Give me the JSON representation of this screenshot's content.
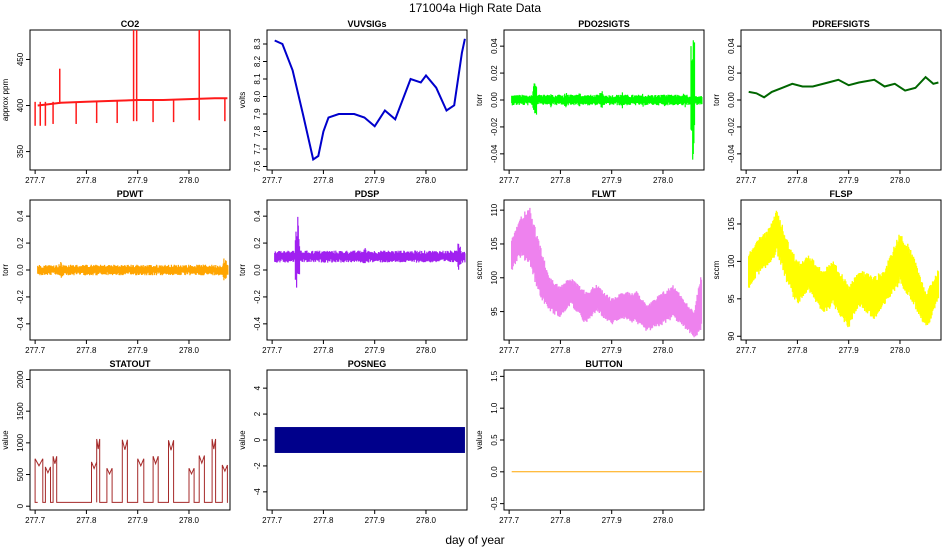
{
  "figure": {
    "title": "171004a   High Rate Data",
    "xlabel": "day of year"
  },
  "chart_data": [
    {
      "id": "co2",
      "type": "line",
      "title": "CO2",
      "ylabel": "approx ppm",
      "color": "#ff1a1a",
      "xlim": [
        277.69,
        278.08
      ],
      "ylim": [
        330,
        482
      ],
      "yticks": [
        {
          "v": 350,
          "label": "350"
        },
        {
          "v": 400,
          "label": "400"
        },
        {
          "v": 450,
          "label": "450"
        }
      ],
      "x": [
        277.705,
        277.72,
        277.75,
        277.8,
        277.85,
        277.9,
        277.95,
        278.0,
        278.05,
        278.075
      ],
      "y": [
        400,
        401,
        403,
        404,
        405,
        406,
        406,
        407,
        408,
        408
      ],
      "spikes": [
        {
          "x": 277.7,
          "lo": 378,
          "hi": 404
        },
        {
          "x": 277.71,
          "lo": 378,
          "hi": 404
        },
        {
          "x": 277.72,
          "lo": 378,
          "hi": 404
        },
        {
          "x": 277.735,
          "lo": 380,
          "hi": 404
        },
        {
          "x": 277.748,
          "lo": 402,
          "hi": 440
        },
        {
          "x": 277.78,
          "lo": 380,
          "hi": 404
        },
        {
          "x": 277.82,
          "lo": 381,
          "hi": 405
        },
        {
          "x": 277.86,
          "lo": 381,
          "hi": 405
        },
        {
          "x": 277.892,
          "lo": 383,
          "hi": 482
        },
        {
          "x": 277.898,
          "lo": 383,
          "hi": 482
        },
        {
          "x": 277.93,
          "lo": 382,
          "hi": 406
        },
        {
          "x": 277.97,
          "lo": 382,
          "hi": 406
        },
        {
          "x": 278.02,
          "lo": 384,
          "hi": 482
        },
        {
          "x": 278.07,
          "lo": 383,
          "hi": 408
        }
      ]
    },
    {
      "id": "vuvsigs",
      "type": "line",
      "title": "VUVSIGs",
      "ylabel": "volts",
      "color": "#0000cc",
      "xlim": [
        277.69,
        278.08
      ],
      "ylim": [
        7.58,
        8.38
      ],
      "yticks": [
        {
          "v": 7.6,
          "label": "7.6"
        },
        {
          "v": 7.7,
          "label": "7.7"
        },
        {
          "v": 7.8,
          "label": "7.8"
        },
        {
          "v": 7.9,
          "label": "7.9"
        },
        {
          "v": 8.0,
          "label": "8.0"
        },
        {
          "v": 8.1,
          "label": "8.1"
        },
        {
          "v": 8.2,
          "label": "8.2"
        },
        {
          "v": 8.3,
          "label": "8.3"
        }
      ],
      "x": [
        277.705,
        277.72,
        277.74,
        277.76,
        277.78,
        277.79,
        277.8,
        277.81,
        277.83,
        277.86,
        277.88,
        277.9,
        277.92,
        277.94,
        277.97,
        277.99,
        278.0,
        278.02,
        278.04,
        278.055,
        278.07,
        278.076
      ],
      "y": [
        8.32,
        8.3,
        8.15,
        7.9,
        7.64,
        7.66,
        7.8,
        7.88,
        7.9,
        7.9,
        7.88,
        7.83,
        7.92,
        7.87,
        8.1,
        8.08,
        8.12,
        8.05,
        7.92,
        7.95,
        8.25,
        8.33
      ]
    },
    {
      "id": "pdo2sigts",
      "type": "noise",
      "title": "PDO2SIGTS",
      "ylabel": "torr",
      "color": "#00ff00",
      "xlim": [
        277.69,
        278.08
      ],
      "ylim": [
        -0.052,
        0.052
      ],
      "yticks": [
        {
          "v": -0.04,
          "label": "-0.04"
        },
        {
          "v": -0.02,
          "label": "-0.02"
        },
        {
          "v": 0.0,
          "label": "0.00"
        },
        {
          "v": 0.02,
          "label": "0.02"
        },
        {
          "v": 0.04,
          "label": "0.04"
        }
      ],
      "center": 0.0,
      "band": 0.004,
      "bursts": [
        {
          "x": 277.75,
          "amp": 0.017
        },
        {
          "x": 277.78,
          "amp": 0.007
        },
        {
          "x": 277.81,
          "amp": 0.007
        },
        {
          "x": 277.84,
          "amp": 0.006
        },
        {
          "x": 277.88,
          "amp": 0.008
        },
        {
          "x": 277.92,
          "amp": 0.007
        },
        {
          "x": 277.96,
          "amp": 0.007
        },
        {
          "x": 278.0,
          "amp": 0.006
        },
        {
          "x": 278.04,
          "amp": 0.006
        },
        {
          "x": 278.058,
          "amp": 0.052
        }
      ]
    },
    {
      "id": "pdrefsigts",
      "type": "line",
      "title": "PDREFSIGTS",
      "ylabel": "torr",
      "color": "#006600",
      "xlim": [
        277.69,
        278.08
      ],
      "ylim": [
        -0.052,
        0.052
      ],
      "yticks": [
        {
          "v": -0.04,
          "label": "-0.04"
        },
        {
          "v": -0.02,
          "label": "-0.02"
        },
        {
          "v": 0.0,
          "label": "0.00"
        },
        {
          "v": 0.02,
          "label": "0.02"
        },
        {
          "v": 0.04,
          "label": "0.04"
        }
      ],
      "x": [
        277.705,
        277.72,
        277.735,
        277.75,
        277.77,
        277.79,
        277.81,
        277.83,
        277.86,
        277.88,
        277.9,
        277.92,
        277.95,
        277.97,
        277.99,
        278.01,
        278.03,
        278.05,
        278.065,
        278.075
      ],
      "y": [
        0.006,
        0.005,
        0.002,
        0.006,
        0.009,
        0.012,
        0.01,
        0.01,
        0.013,
        0.015,
        0.011,
        0.013,
        0.015,
        0.01,
        0.012,
        0.007,
        0.009,
        0.017,
        0.012,
        0.013
      ]
    },
    {
      "id": "pdwt",
      "type": "noise",
      "title": "PDWT",
      "ylabel": "torr",
      "color": "#ffa500",
      "xlim": [
        277.69,
        278.08
      ],
      "ylim": [
        -0.52,
        0.52
      ],
      "yticks": [
        {
          "v": -0.4,
          "label": "-0.4"
        },
        {
          "v": -0.2,
          "label": "-0.2"
        },
        {
          "v": 0.0,
          "label": "0.0"
        },
        {
          "v": 0.2,
          "label": "0.2"
        },
        {
          "v": 0.4,
          "label": "0.4"
        }
      ],
      "center": 0.0,
      "band": 0.04,
      "bursts": [
        {
          "x": 277.75,
          "amp": 0.08
        },
        {
          "x": 278.07,
          "amp": 0.1
        }
      ]
    },
    {
      "id": "pdsp",
      "type": "noise",
      "title": "PDSP",
      "ylabel": "torr",
      "color": "#a020f0",
      "xlim": [
        277.69,
        278.08
      ],
      "ylim": [
        -0.52,
        0.52
      ],
      "yticks": [
        {
          "v": -0.4,
          "label": "-0.4"
        },
        {
          "v": -0.2,
          "label": "-0.2"
        },
        {
          "v": 0.0,
          "label": "0.0"
        },
        {
          "v": 0.2,
          "label": "0.2"
        },
        {
          "v": 0.4,
          "label": "0.4"
        }
      ],
      "center": 0.1,
      "band": 0.045,
      "bursts": [
        {
          "x": 277.748,
          "amp": 0.33
        },
        {
          "x": 277.75,
          "amp": 0.25
        },
        {
          "x": 277.88,
          "amp": 0.1
        },
        {
          "x": 278.065,
          "amp": 0.12
        }
      ]
    },
    {
      "id": "flwt",
      "type": "band",
      "title": "FLWT",
      "ylabel": "sccm",
      "color": "#ee82ee",
      "xlim": [
        277.69,
        278.08
      ],
      "ylim": [
        90.8,
        111.5
      ],
      "yticks": [
        {
          "v": 95,
          "label": "95"
        },
        {
          "v": 100,
          "label": "100"
        },
        {
          "v": 105,
          "label": "105"
        },
        {
          "v": 110,
          "label": "110"
        }
      ],
      "x": [
        277.705,
        277.72,
        277.74,
        277.76,
        277.78,
        277.8,
        277.82,
        277.85,
        277.87,
        277.9,
        277.92,
        277.95,
        277.97,
        278.0,
        278.02,
        278.05,
        278.06,
        278.075
      ],
      "lo": [
        101,
        103,
        102,
        97,
        95,
        94,
        96,
        93,
        95,
        93,
        94,
        93,
        92,
        93,
        94,
        92,
        91,
        92
      ],
      "hi": [
        106,
        109,
        110.5,
        105,
        100,
        99,
        100,
        98,
        99,
        97,
        98,
        98,
        96,
        98,
        99,
        96,
        95,
        101
      ]
    },
    {
      "id": "flsp",
      "type": "band",
      "title": "FLSP",
      "ylabel": "sccm",
      "color": "#ffff00",
      "xlim": [
        277.69,
        278.08
      ],
      "ylim": [
        89.5,
        108.2
      ],
      "yticks": [
        {
          "v": 90,
          "label": "90"
        },
        {
          "v": 95,
          "label": "95"
        },
        {
          "v": 100,
          "label": "100"
        },
        {
          "v": 105,
          "label": "105"
        }
      ],
      "x": [
        277.705,
        277.72,
        277.74,
        277.76,
        277.78,
        277.8,
        277.82,
        277.85,
        277.87,
        277.9,
        277.92,
        277.95,
        277.97,
        278.0,
        278.02,
        278.05,
        278.06,
        278.075
      ],
      "lo": [
        96,
        98,
        99,
        101,
        97,
        94,
        96,
        93,
        94,
        91,
        94,
        92,
        94,
        97,
        95,
        91,
        92,
        95
      ],
      "hi": [
        101,
        103,
        104,
        107,
        103,
        100,
        101,
        99,
        100,
        97,
        99,
        98,
        99,
        104,
        102,
        96,
        97,
        99
      ]
    },
    {
      "id": "statout",
      "type": "step",
      "title": "STATOUT",
      "ylabel": "value",
      "color": "#a52a2a",
      "xlim": [
        277.69,
        278.08
      ],
      "ylim": [
        -60,
        2150
      ],
      "yticks": [
        {
          "v": 0,
          "label": "0"
        },
        {
          "v": 500,
          "label": "500"
        },
        {
          "v": 1000,
          "label": "1000"
        },
        {
          "v": 1500,
          "label": "1500"
        },
        {
          "v": 2000,
          "label": "2000"
        }
      ],
      "base": 60,
      "pulses": [
        {
          "x0": 277.7,
          "x1": 277.715,
          "h": 750
        },
        {
          "x0": 277.72,
          "x1": 277.73,
          "h": 620
        },
        {
          "x0": 277.735,
          "x1": 277.742,
          "h": 790
        },
        {
          "x0": 277.81,
          "x1": 277.82,
          "h": 700
        },
        {
          "x0": 277.82,
          "x1": 277.826,
          "h": 1060
        },
        {
          "x0": 277.84,
          "x1": 277.85,
          "h": 600
        },
        {
          "x0": 277.87,
          "x1": 277.88,
          "h": 1050
        },
        {
          "x0": 277.9,
          "x1": 277.912,
          "h": 750
        },
        {
          "x0": 277.93,
          "x1": 277.94,
          "h": 790
        },
        {
          "x0": 277.96,
          "x1": 277.97,
          "h": 1040
        },
        {
          "x0": 278.0,
          "x1": 278.01,
          "h": 600
        },
        {
          "x0": 278.02,
          "x1": 278.03,
          "h": 800
        },
        {
          "x0": 278.045,
          "x1": 278.052,
          "h": 1060
        },
        {
          "x0": 278.065,
          "x1": 278.075,
          "h": 650
        }
      ]
    },
    {
      "id": "posneg",
      "type": "area",
      "title": "POSNEG",
      "ylabel": "value",
      "color": "#00008b",
      "xlim": [
        277.69,
        278.08
      ],
      "ylim": [
        -5.4,
        5.4
      ],
      "yticks": [
        {
          "v": -4,
          "label": "-4"
        },
        {
          "v": -2,
          "label": "-2"
        },
        {
          "v": 0,
          "label": "0"
        },
        {
          "v": 2,
          "label": "2"
        },
        {
          "v": 4,
          "label": "4"
        }
      ],
      "x0": 277.705,
      "x1": 278.076,
      "lo": -1,
      "hi": 1
    },
    {
      "id": "button",
      "type": "line",
      "title": "BUTTON",
      "ylabel": "value",
      "color": "#ffa500",
      "xlim": [
        277.69,
        278.08
      ],
      "ylim": [
        -0.6,
        1.6
      ],
      "yticks": [
        {
          "v": -0.5,
          "label": "-0.5"
        },
        {
          "v": 0.0,
          "label": "0.0"
        },
        {
          "v": 0.5,
          "label": "0.5"
        },
        {
          "v": 1.0,
          "label": "1.0"
        },
        {
          "v": 1.5,
          "label": "1.5"
        }
      ],
      "x": [
        277.705,
        278.076
      ],
      "y": [
        0,
        0
      ]
    }
  ],
  "xticks": [
    {
      "v": 277.7,
      "label": "277.7"
    },
    {
      "v": 277.8,
      "label": "277.8"
    },
    {
      "v": 277.9,
      "label": "277.9"
    },
    {
      "v": 278.0,
      "label": "278.0"
    }
  ]
}
